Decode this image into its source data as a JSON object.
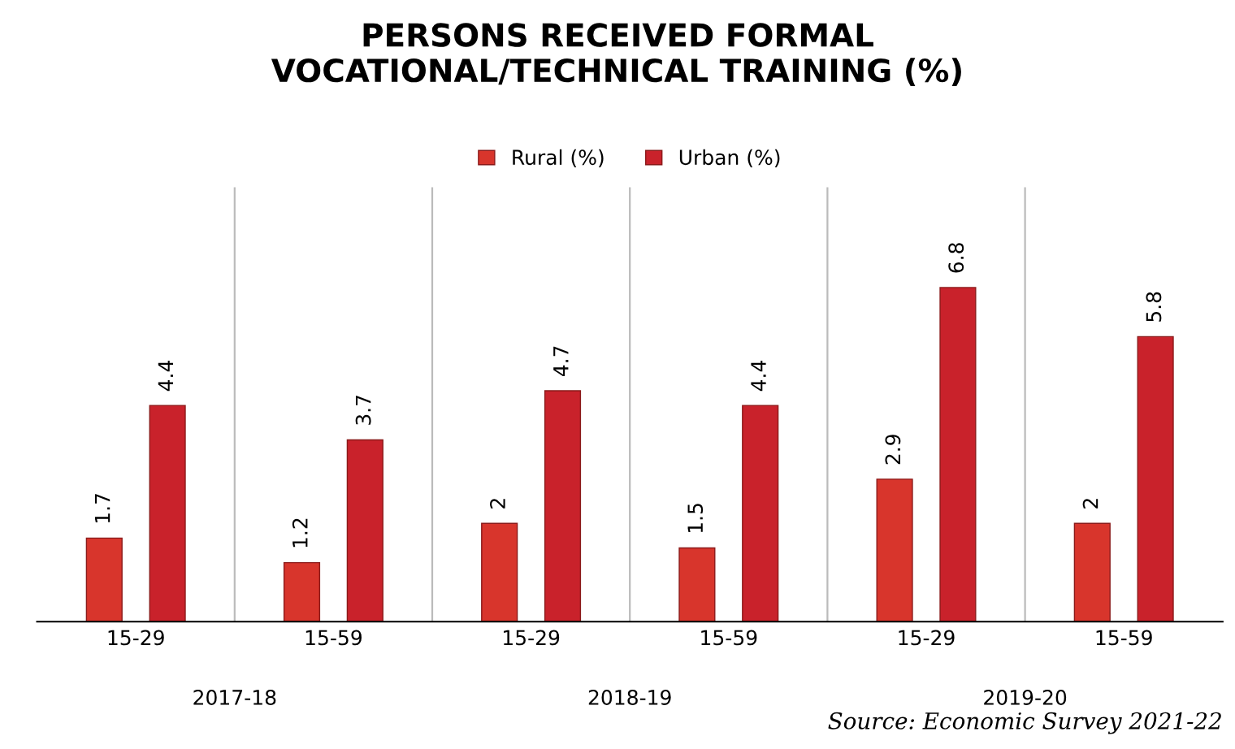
{
  "chart_data": {
    "type": "bar",
    "title": "PERSONS RECEIVED FORMAL\nVOCATIONAL/TECHNICAL TRAINING (%)",
    "categories": [
      "15-29",
      "15-59",
      "15-29",
      "15-59",
      "15-29",
      "15-59"
    ],
    "series": [
      {
        "name": "Rural (%)",
        "color": "#d8352c",
        "values": [
          1.7,
          1.2,
          2,
          1.5,
          2.9,
          2
        ]
      },
      {
        "name": "Urban (%)",
        "color": "#c9222b",
        "values": [
          4.4,
          3.7,
          4.7,
          4.4,
          6.8,
          5.8
        ]
      }
    ],
    "annotations": [
      "2017-18",
      "2018-19",
      "2019-20",
      "Source: Economic Survey 2021-22"
    ],
    "data_labels": true,
    "legend": "top",
    "grid": false
  }
}
